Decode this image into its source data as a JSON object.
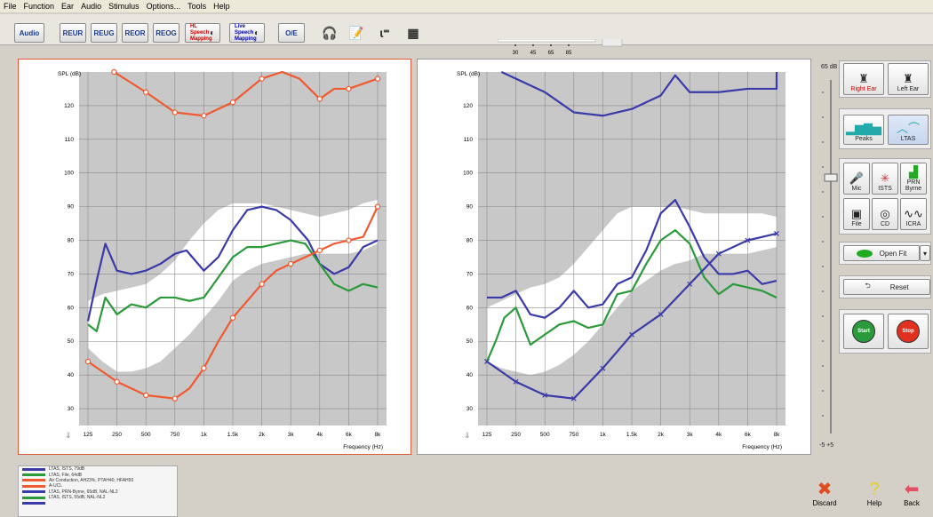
{
  "menu": [
    "File",
    "Function",
    "Ear",
    "Audio",
    "Stimulus",
    "Options...",
    "Tools",
    "Help"
  ],
  "toolbar": {
    "audio": "Audio",
    "reur": "REUR",
    "reug": "REUG",
    "reor": "REOR",
    "reog": "REOG",
    "hl_map": "HL Speech Mapping",
    "live_map": "Live Speech Mapping",
    "oe": "O/E",
    "level_ticks": [
      "30",
      "45",
      "65",
      "85"
    ]
  },
  "colors": {
    "blue": "#3a3aa8",
    "green": "#2a9a3a",
    "red": "#f05a30",
    "target": "#ffffff",
    "grid": "#bdbdbd",
    "plot_bg": "#c8c8c8"
  },
  "chart_data": [
    {
      "type": "line",
      "ylabel": "SPL (dB)",
      "xlabel": "Frequency (Hz)",
      "ylim": [
        25,
        130
      ],
      "xticks": [
        "125",
        "250",
        "500",
        "750",
        "1k",
        "1.5k",
        "2k",
        "3k",
        "4k",
        "6k",
        "8k"
      ],
      "yticks": [
        "30",
        "40",
        "50",
        "60",
        "70",
        "80",
        "90",
        "100",
        "110",
        "120"
      ],
      "grid": true,
      "target_band": {
        "x": [
          0,
          0.5,
          1,
          1.5,
          2,
          2.5,
          3,
          3.5,
          4,
          4.5,
          5,
          5.5,
          6,
          6.5,
          7,
          7.5,
          8,
          8.5,
          9,
          9.5,
          10
        ],
        "upper": [
          62,
          64,
          65,
          66,
          67,
          70,
          74,
          80,
          85,
          89,
          91,
          91,
          91,
          90,
          89,
          88,
          87,
          88,
          89,
          91,
          92
        ],
        "lower": [
          48,
          44,
          41,
          41,
          42,
          44,
          48,
          52,
          57,
          62,
          68,
          71,
          73,
          74,
          75,
          76,
          76,
          76,
          76,
          77,
          79
        ]
      },
      "series": [
        {
          "color": "blue",
          "marker": "none",
          "x": [
            0,
            0.3,
            0.6,
            0.8,
            1,
            1.5,
            2,
            2.5,
            3,
            3.4,
            3.7,
            4,
            4.5,
            5,
            5.5,
            6,
            6.5,
            7,
            7.2,
            7.6,
            8,
            8.5,
            9,
            9.5,
            10
          ],
          "values": [
            56,
            68,
            79,
            75,
            71,
            70,
            71,
            73,
            76,
            77,
            74,
            71,
            75,
            83,
            89,
            90,
            89,
            86,
            84,
            80,
            73,
            70,
            72,
            78,
            80
          ]
        },
        {
          "color": "green",
          "marker": "none",
          "x": [
            0,
            0.3,
            0.6,
            1,
            1.5,
            2,
            2.5,
            3,
            3.5,
            4,
            4.5,
            5,
            5.5,
            6,
            6.5,
            7,
            7.5,
            8,
            8.5,
            9,
            9.5,
            10
          ],
          "values": [
            55,
            53,
            63,
            58,
            61,
            60,
            63,
            63,
            62,
            63,
            69,
            75,
            78,
            78,
            79,
            80,
            79,
            73,
            67,
            65,
            67,
            66
          ]
        },
        {
          "color": "red",
          "marker": "circle",
          "x": [
            0,
            1,
            2,
            3,
            3.5,
            4,
            4.5,
            5,
            5.5,
            6,
            6.5,
            7,
            7.5,
            8,
            8.5,
            9,
            9.5,
            10
          ],
          "values": [
            44,
            38,
            34,
            33,
            36,
            42,
            50,
            57,
            62,
            67,
            71,
            73,
            75,
            77,
            79,
            80,
            81,
            90
          ]
        },
        {
          "color": "red",
          "marker": "circle",
          "x": [
            0.9,
            2,
            3,
            4,
            5,
            6,
            6.7,
            7.3,
            8,
            8.5,
            9,
            10
          ],
          "values": [
            130,
            124,
            118,
            117,
            121,
            128,
            131,
            128,
            122,
            125,
            125,
            128
          ]
        }
      ]
    },
    {
      "type": "line",
      "ylabel": "SPL (dB)",
      "xlabel": "Frequency (Hz)",
      "ylim": [
        25,
        130
      ],
      "xticks": [
        "125",
        "250",
        "500",
        "750",
        "1k",
        "1.5k",
        "2k",
        "3k",
        "4k",
        "6k",
        "8k"
      ],
      "yticks": [
        "30",
        "40",
        "50",
        "60",
        "70",
        "80",
        "90",
        "100",
        "110",
        "120"
      ],
      "grid": true,
      "target_band": {
        "x": [
          0,
          0.5,
          1,
          1.5,
          2,
          2.5,
          3,
          3.5,
          4,
          4.5,
          5,
          5.5,
          6,
          6.5,
          7,
          7.5,
          8,
          8.5,
          9,
          9.5,
          10
        ],
        "upper": [
          60,
          62,
          64,
          66,
          67,
          69,
          73,
          78,
          83,
          88,
          90,
          90,
          90,
          90,
          89,
          88,
          88,
          88,
          88,
          88,
          87
        ],
        "lower": [
          44,
          42,
          41,
          40,
          41,
          43,
          46,
          50,
          55,
          60,
          65,
          68,
          71,
          73,
          74,
          76,
          76,
          76,
          76,
          77,
          78
        ]
      },
      "series": [
        {
          "color": "blue",
          "marker": "none",
          "x": [
            0,
            0.5,
            1,
            1.5,
            2,
            2.5,
            3,
            3.5,
            4,
            4.5,
            5,
            5.5,
            6,
            6.5,
            7,
            7.5,
            8,
            8.5,
            9,
            9.5,
            10
          ],
          "values": [
            63,
            63,
            65,
            58,
            57,
            60,
            65,
            60,
            61,
            67,
            69,
            77,
            88,
            92,
            84,
            75,
            70,
            70,
            71,
            67,
            68
          ]
        },
        {
          "color": "green",
          "marker": "none",
          "x": [
            0,
            0.3,
            0.6,
            1,
            1.5,
            2,
            2.5,
            3,
            3.5,
            4,
            4.5,
            5,
            5.5,
            6,
            6.5,
            7,
            7.5,
            8,
            8.5,
            9,
            9.5,
            10
          ],
          "values": [
            44,
            50,
            57,
            60,
            49,
            52,
            55,
            56,
            54,
            55,
            64,
            65,
            73,
            80,
            83,
            79,
            69,
            64,
            67,
            66,
            65,
            63
          ]
        },
        {
          "color": "blue",
          "marker": "x",
          "x": [
            0,
            1,
            2,
            3,
            4,
            5,
            6,
            7,
            8,
            9,
            10
          ],
          "values": [
            44,
            38,
            34,
            33,
            42,
            52,
            58,
            67,
            76,
            80,
            82
          ]
        },
        {
          "color": "blue",
          "marker": "none",
          "x": [
            0.5,
            2,
            3,
            4,
            5,
            6,
            6.5,
            7,
            8,
            9,
            10,
            10
          ],
          "values": [
            130,
            124,
            118,
            117,
            119,
            123,
            129,
            124,
            124,
            125,
            125,
            130
          ]
        }
      ]
    }
  ],
  "sidebar": {
    "db_top": "65 dB",
    "db_bottom": "-5 +5",
    "right_ear": "Right Ear",
    "left_ear": "Left Ear",
    "peaks": "Peaks",
    "ltas": "LTAS",
    "mic": "Mic",
    "ists": "ISTS",
    "prn": "PRN Byrne",
    "file": "File",
    "cd": "CD",
    "icra": "ICRA",
    "open_fit": "Open Fit",
    "reset": "Reset",
    "start": "Start",
    "stop": "Stop"
  },
  "legend": [
    {
      "color": "blue",
      "text": "LTAS, ISTS, 79dB"
    },
    {
      "color": "green",
      "text": "LTAS, File, 64dB"
    },
    {
      "color": "red",
      "text": "Air Conduction, AH23%, PTAH40, HFAH50"
    },
    {
      "color": "red",
      "text": "A-UCL"
    },
    {
      "color": "blue",
      "text": "LTAS, PRN-Byrne, 65dB, NAL-NL2"
    },
    {
      "color": "green",
      "text": "LTAS, ISTS, 55dB, NAL-NL2"
    },
    {
      "color": "blue",
      "text": ""
    }
  ],
  "bottom": {
    "discard": "Discard",
    "help": "Help",
    "back": "Back"
  }
}
